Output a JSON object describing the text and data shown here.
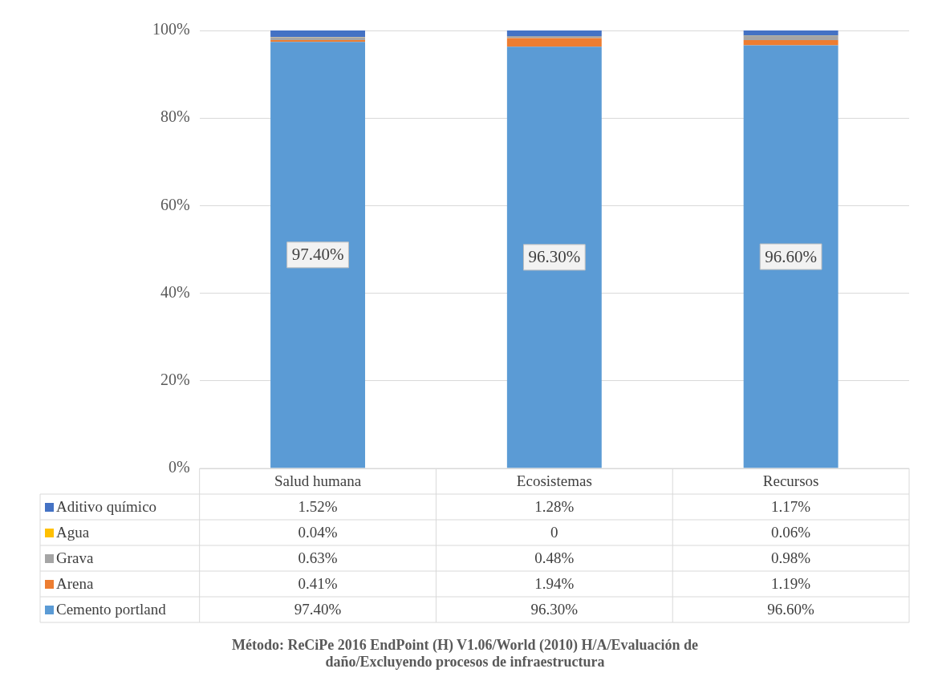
{
  "chart_data": {
    "type": "bar",
    "stacked": true,
    "categories": [
      "Salud humana",
      "Ecosistemas",
      "Recursos"
    ],
    "series": [
      {
        "name": "Cemento portland",
        "color": "#5b9bd5",
        "values": [
          97.4,
          96.3,
          96.6
        ],
        "value_labels": [
          "97.40%",
          "96.30%",
          "96.60%"
        ]
      },
      {
        "name": "Arena",
        "color": "#ed7d31",
        "values": [
          0.41,
          1.94,
          1.19
        ],
        "value_labels": [
          "0.41%",
          "1.94%",
          "1.19%"
        ]
      },
      {
        "name": "Grava",
        "color": "#a5a5a5",
        "values": [
          0.63,
          0.48,
          0.98
        ],
        "value_labels": [
          "0.63%",
          "0.48%",
          "0.98%"
        ]
      },
      {
        "name": "Agua",
        "color": "#ffc000",
        "values": [
          0.04,
          0,
          0.06
        ],
        "value_labels": [
          "0.04%",
          "0",
          "0.06%"
        ]
      },
      {
        "name": "Aditivo químico",
        "color": "#4472c4",
        "values": [
          1.52,
          1.28,
          1.17
        ],
        "value_labels": [
          "1.52%",
          "1.28%",
          "1.17%"
        ]
      }
    ],
    "ylim": [
      0,
      100
    ],
    "yticks": [
      {
        "value": 0,
        "label": "0%"
      },
      {
        "value": 20,
        "label": "20%"
      },
      {
        "value": 40,
        "label": "40%"
      },
      {
        "value": 60,
        "label": "60%"
      },
      {
        "value": 80,
        "label": "80%"
      },
      {
        "value": 100,
        "label": "100%"
      }
    ],
    "grid": "y",
    "legend": "bottom",
    "annotations": [
      "Método: ReCiPe 2016 EndPoint (H) V1.06/World (2010) H/A/Evaluación de daño/Excluyendo procesos de infraestructura"
    ]
  }
}
